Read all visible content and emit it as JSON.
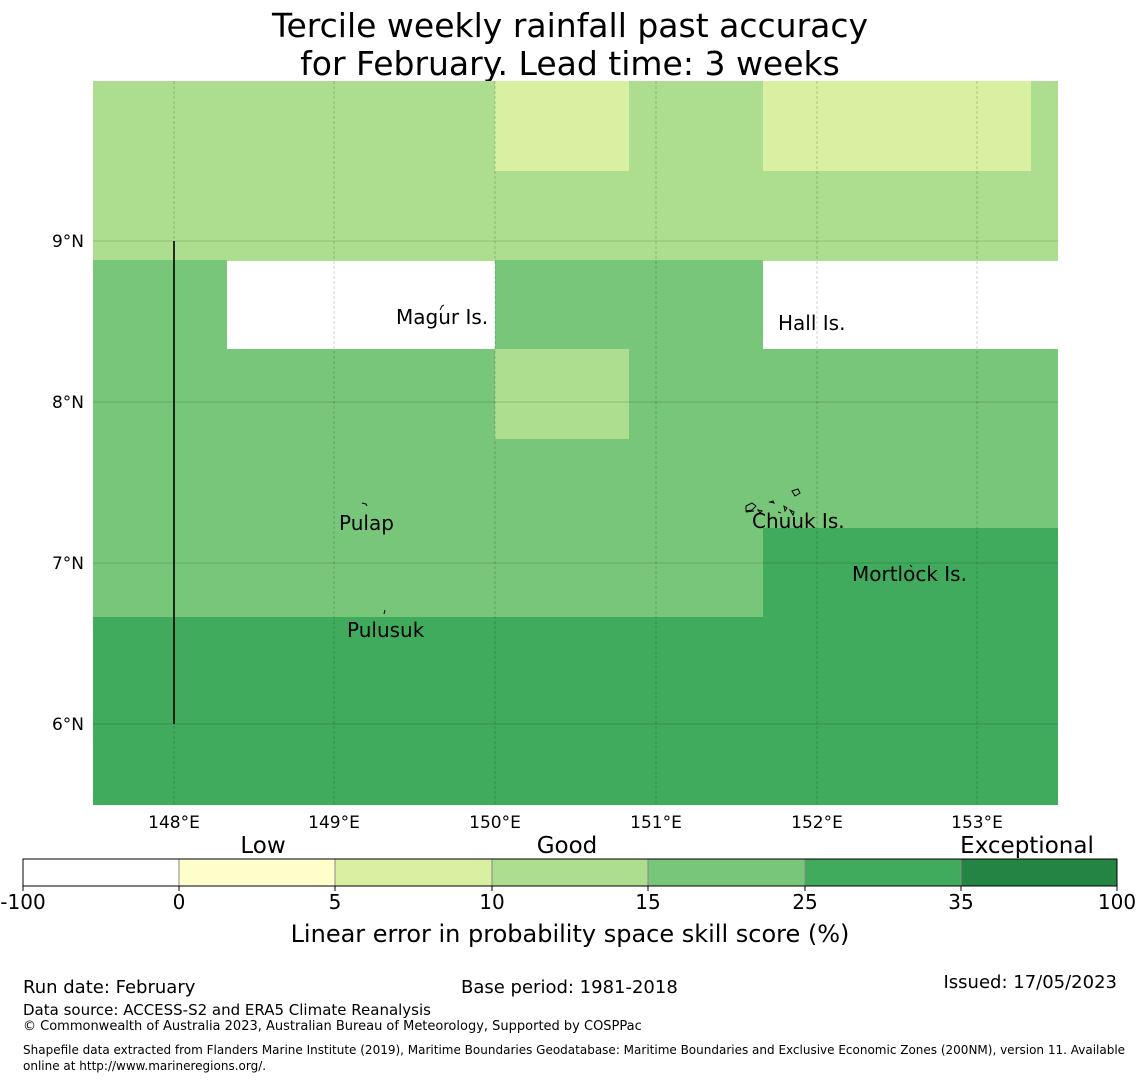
{
  "title": {
    "line1": "Tercile weekly rainfall past accuracy",
    "line2": "for February. Lead time: 3 weeks"
  },
  "map": {
    "lat_labels": [
      "9°N",
      "8°N",
      "7°N",
      "6°N"
    ],
    "lon_labels": [
      "148°E",
      "149°E",
      "150°E",
      "151°E",
      "152°E",
      "153°E"
    ],
    "places": [
      {
        "name": "Magur Is."
      },
      {
        "name": "Hall Is."
      },
      {
        "name": "Pulap"
      },
      {
        "name": "Chuuk Is."
      },
      {
        "name": "Mortlock Is."
      },
      {
        "name": "Pulusuk"
      }
    ],
    "colors": {
      "bin_0_5": "#ffffcc",
      "bin_5_10": "#d9f0a3",
      "bin_10_15": "#addd8e",
      "bin_15_25": "#78c679",
      "bin_25_35": "#41ab5d",
      "bin_35_100": "#238443"
    }
  },
  "colorbar": {
    "category_labels": [
      "Low",
      "Good",
      "Exceptional"
    ],
    "tick_labels": [
      "-100",
      "0",
      "5",
      "10",
      "15",
      "25",
      "35",
      "100"
    ],
    "axis_label": "Linear error in probability space skill score (%)",
    "colors": [
      "#ffffff",
      "#ffffcc",
      "#d9f0a3",
      "#addd8e",
      "#78c679",
      "#41ab5d",
      "#238443"
    ]
  },
  "footer": {
    "run_date": "Run date: February",
    "base_period": "Base period: 1981-2018",
    "issued": "Issued: 17/05/2023",
    "data_source": "Data source: ACCESS-S2 and ERA5 Climate Reanalysis",
    "copyright": "© Commonwealth of Australia 2023, Australian Bureau of Meteorology, Supported by COSPPac",
    "shapefile": "Shapefile data extracted from Flanders Marine Institute (2019), Maritime Boundaries Geodatabase: Maritime Boundaries and Exclusive Economic Zones (200NM), version 11. Available online at http://www.marineregions.org/."
  }
}
